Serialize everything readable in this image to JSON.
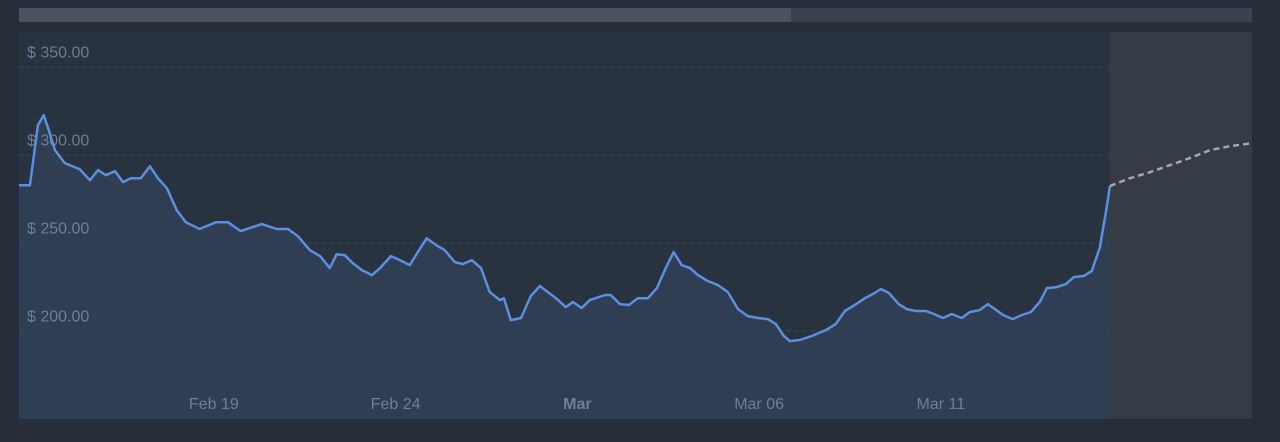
{
  "chart_data": {
    "type": "line",
    "xlim": [
      13.64,
      47.56
    ],
    "ylim": [
      150,
      370
    ],
    "xticks": [
      {
        "value": 19,
        "label": "Feb 19"
      },
      {
        "value": 24,
        "label": "Feb 24"
      },
      {
        "value": 29,
        "label": "Mar"
      },
      {
        "value": 34,
        "label": "Mar 06"
      },
      {
        "value": 39,
        "label": "Mar 11"
      }
    ],
    "yticks": [
      {
        "value": 200,
        "label": "$ 200.00"
      },
      {
        "value": 250,
        "label": "$ 250.00"
      },
      {
        "value": 300,
        "label": "$ 300.00"
      },
      {
        "value": 350,
        "label": "$ 350.00"
      }
    ],
    "grid": true,
    "series": [
      {
        "color": "#5b8fe0",
        "area": true,
        "dashed": false,
        "x": [
          13.64,
          13.94,
          14.16,
          14.32,
          14.46,
          14.63,
          14.9,
          15.31,
          15.59,
          15.81,
          16.03,
          16.28,
          16.5,
          16.72,
          16.99,
          17.24,
          17.46,
          17.71,
          17.98,
          18.23,
          18.61,
          19.06,
          19.39,
          19.74,
          20.32,
          20.73,
          21.04,
          21.31,
          21.64,
          21.92,
          22.19,
          22.38,
          22.6,
          22.82,
          23.07,
          23.35,
          23.57,
          23.87,
          24.12,
          24.39,
          24.61,
          24.86,
          25.11,
          25.35,
          25.63,
          25.85,
          26.1,
          26.35,
          26.59,
          26.87,
          26.98,
          27.17,
          27.45,
          27.72,
          27.97,
          28.22,
          28.44,
          28.68,
          28.88,
          29.12,
          29.34,
          29.76,
          29.92,
          30.17,
          30.42,
          30.66,
          30.94,
          31.19,
          31.43,
          31.65,
          31.87,
          32.1,
          32.32,
          32.59,
          32.87,
          33.14,
          33.42,
          33.69,
          33.97,
          34.24,
          34.46,
          34.68,
          34.85,
          35.12,
          35.45,
          35.84,
          36.11,
          36.36,
          36.63,
          36.91,
          37.18,
          37.35,
          37.57,
          37.84,
          38.06,
          38.31,
          38.59,
          38.81,
          39.06,
          39.3,
          39.58,
          39.8,
          40.07,
          40.29,
          40.49,
          40.71,
          40.98,
          41.23,
          41.48,
          41.72,
          41.92,
          42.19,
          42.44,
          42.66,
          42.93,
          43.15,
          43.37,
          43.54,
          43.65
        ],
        "values": [
          282.9,
          282.9,
          317.0,
          322.7,
          314.2,
          302.8,
          295.5,
          292.0,
          285.8,
          291.5,
          288.6,
          290.9,
          284.7,
          286.9,
          286.9,
          293.7,
          286.9,
          281.2,
          268.7,
          261.9,
          258.0,
          261.9,
          261.9,
          256.8,
          260.8,
          258.0,
          258.0,
          254.0,
          246.0,
          242.6,
          235.8,
          243.7,
          243.2,
          238.6,
          234.7,
          231.8,
          235.8,
          242.6,
          240.3,
          237.5,
          244.9,
          252.8,
          248.9,
          246.0,
          239.2,
          238.1,
          240.3,
          235.8,
          222.2,
          217.6,
          218.7,
          206.2,
          207.4,
          219.9,
          225.6,
          221.6,
          218.2,
          213.6,
          216.5,
          213.1,
          217.6,
          220.5,
          220.5,
          215.3,
          214.8,
          218.7,
          218.7,
          224.4,
          235.8,
          244.9,
          237.5,
          235.8,
          231.8,
          228.4,
          226.1,
          222.2,
          212.5,
          208.5,
          207.4,
          206.8,
          204.0,
          197.2,
          194.3,
          194.9,
          197.2,
          200.6,
          204.0,
          211.4,
          214.8,
          218.7,
          221.6,
          223.9,
          221.6,
          215.3,
          212.5,
          211.4,
          211.4,
          209.7,
          207.4,
          209.7,
          207.4,
          210.8,
          211.9,
          215.3,
          212.5,
          209.1,
          206.8,
          209.1,
          210.8,
          216.5,
          224.4,
          225.0,
          226.7,
          230.7,
          231.3,
          234.1,
          247.2,
          267.6,
          282.4
        ]
      },
      {
        "color": "#a3a8b0",
        "area": false,
        "dashed": true,
        "shade": "#363c46",
        "x": [
          43.65,
          44.2,
          44.75,
          45.3,
          45.85,
          46.4,
          46.95,
          47.56
        ],
        "values": [
          282.4,
          286.9,
          290.3,
          294.3,
          298.3,
          302.8,
          305.1,
          306.8
        ]
      }
    ]
  }
}
